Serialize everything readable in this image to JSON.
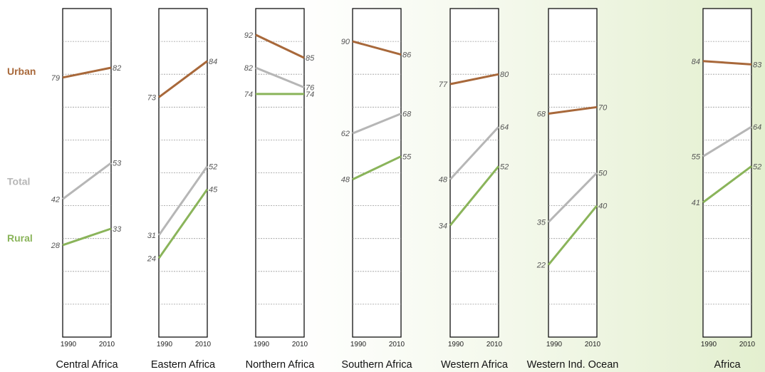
{
  "chart_data": {
    "type": "line",
    "x": [
      "1990",
      "2010"
    ],
    "ylim": [
      0,
      100
    ],
    "grid": true,
    "legend_position": "left",
    "series_order": [
      "Urban",
      "Total",
      "Rural"
    ],
    "colors": {
      "Urban": "#a8683a",
      "Total": "#b6b6b6",
      "Rural": "#8ab45a"
    },
    "panels": [
      {
        "region": "Central Africa",
        "series": [
          {
            "name": "Urban",
            "values": [
              79,
              82
            ]
          },
          {
            "name": "Total",
            "values": [
              42,
              53
            ]
          },
          {
            "name": "Rural",
            "values": [
              28,
              33
            ]
          }
        ]
      },
      {
        "region": "Eastern Africa",
        "series": [
          {
            "name": "Urban",
            "values": [
              73,
              84
            ]
          },
          {
            "name": "Total",
            "values": [
              31,
              52
            ]
          },
          {
            "name": "Rural",
            "values": [
              24,
              45
            ]
          }
        ]
      },
      {
        "region": "Northern Africa",
        "series": [
          {
            "name": "Urban",
            "values": [
              92,
              85
            ]
          },
          {
            "name": "Total",
            "values": [
              82,
              76
            ]
          },
          {
            "name": "Rural",
            "values": [
              74,
              74
            ]
          }
        ]
      },
      {
        "region": "Southern Africa",
        "series": [
          {
            "name": "Urban",
            "values": [
              90,
              86
            ]
          },
          {
            "name": "Total",
            "values": [
              62,
              68
            ]
          },
          {
            "name": "Rural",
            "values": [
              48,
              55
            ]
          }
        ]
      },
      {
        "region": "Western Africa",
        "series": [
          {
            "name": "Urban",
            "values": [
              77,
              80
            ]
          },
          {
            "name": "Total",
            "values": [
              48,
              64
            ]
          },
          {
            "name": "Rural",
            "values": [
              34,
              52
            ]
          }
        ]
      },
      {
        "region": "Western Ind. Ocean",
        "series": [
          {
            "name": "Urban",
            "values": [
              68,
              70
            ]
          },
          {
            "name": "Total",
            "values": [
              35,
              50
            ]
          },
          {
            "name": "Rural",
            "values": [
              22,
              40
            ]
          }
        ]
      },
      {
        "region": "Africa",
        "series": [
          {
            "name": "Urban",
            "values": [
              84,
              83
            ]
          },
          {
            "name": "Total",
            "values": [
              55,
              64
            ]
          },
          {
            "name": "Rural",
            "values": [
              41,
              52
            ]
          }
        ]
      }
    ]
  }
}
